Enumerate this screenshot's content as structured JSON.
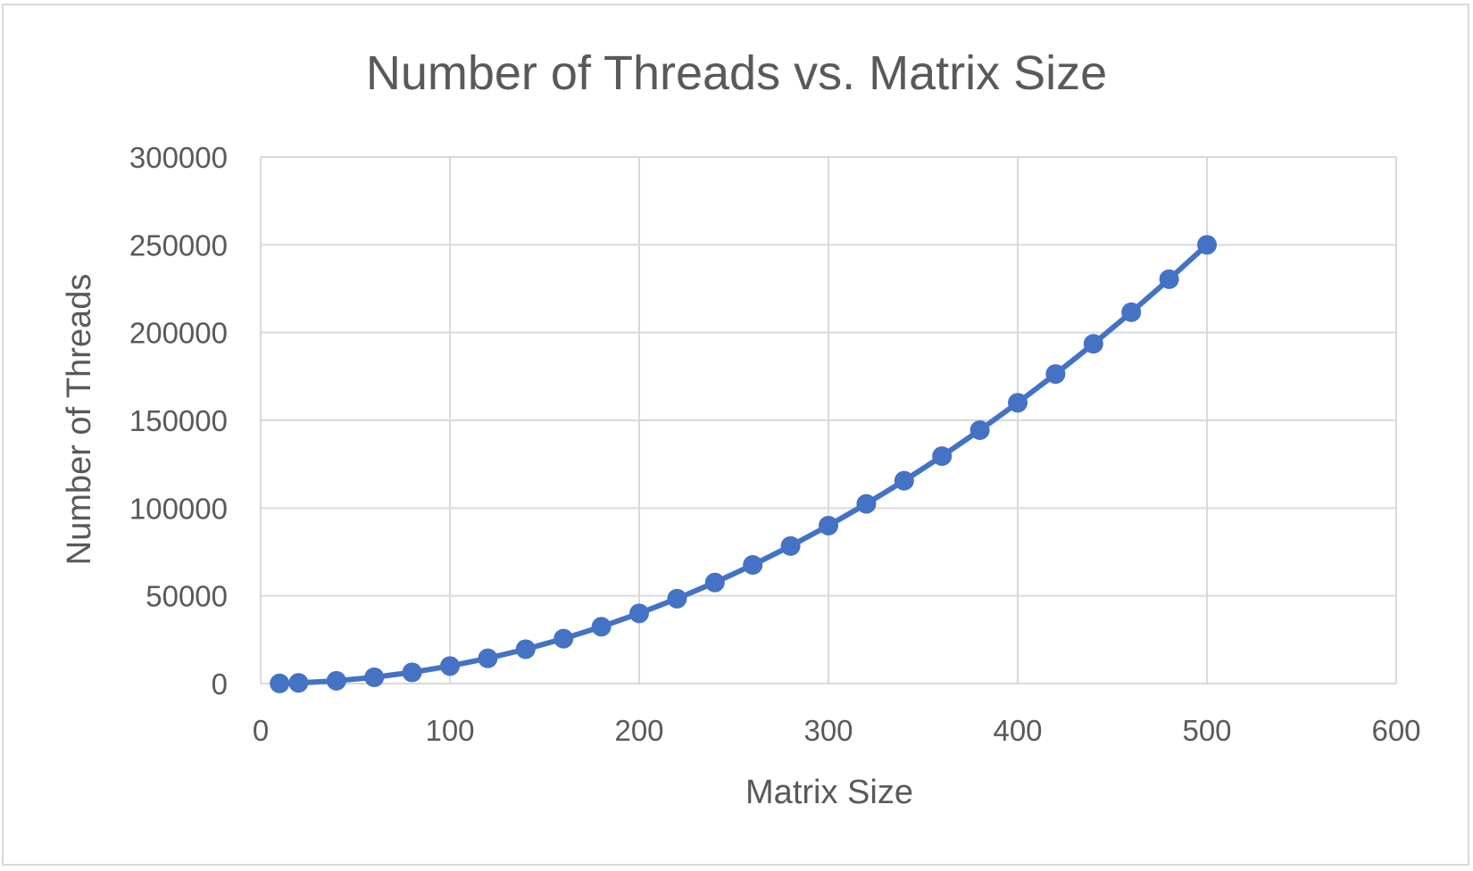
{
  "chart_data": {
    "type": "scatter",
    "title": "Number of Threads vs. Matrix Size",
    "xlabel": "Matrix Size",
    "ylabel": "Number of Threads",
    "xlim": [
      0,
      600
    ],
    "ylim": [
      0,
      300000
    ],
    "x_ticks": [
      0,
      100,
      200,
      300,
      400,
      500,
      600
    ],
    "y_ticks": [
      0,
      50000,
      100000,
      150000,
      200000,
      250000,
      300000
    ],
    "x_tick_labels": [
      "0",
      "100",
      "200",
      "300",
      "400",
      "500",
      "600"
    ],
    "y_tick_labels": [
      "0",
      "50000",
      "100000",
      "150000",
      "200000",
      "250000",
      "300000"
    ],
    "grid": true,
    "legend": "none",
    "markers": true,
    "series": [
      {
        "color": "#4472c4",
        "x": [
          10,
          20,
          40,
          60,
          80,
          100,
          120,
          140,
          160,
          180,
          200,
          220,
          240,
          260,
          280,
          300,
          320,
          340,
          360,
          380,
          400,
          420,
          440,
          460,
          480,
          500
        ],
        "y": [
          100,
          400,
          1600,
          3600,
          6400,
          10000,
          14400,
          19600,
          25600,
          32400,
          40000,
          48400,
          57600,
          67600,
          78400,
          90000,
          102400,
          115600,
          129600,
          144400,
          160000,
          176400,
          193600,
          211600,
          230400,
          250000
        ]
      }
    ]
  }
}
